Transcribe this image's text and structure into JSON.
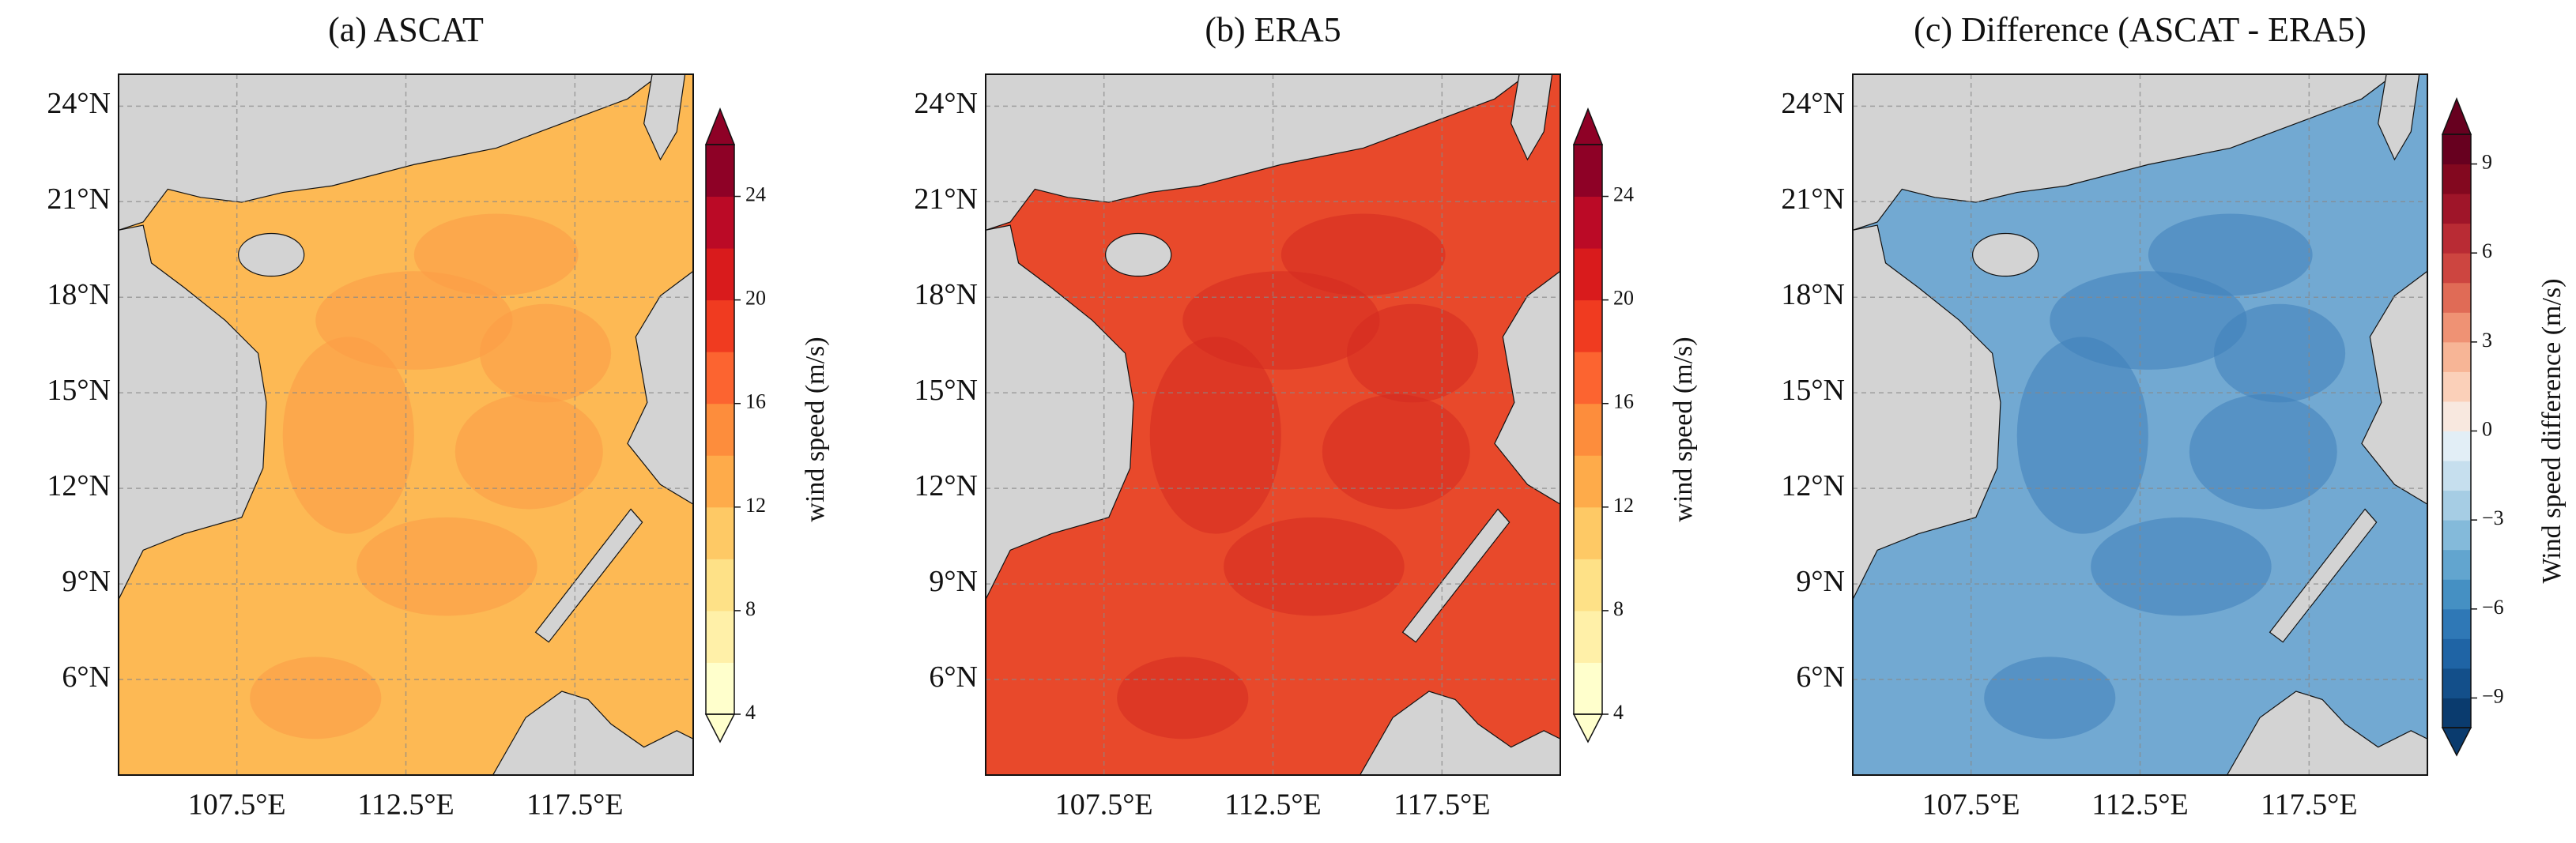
{
  "map": {
    "xlim": [
      104,
      121
    ],
    "ylim": [
      3,
      25
    ],
    "lat_ticks": [
      {
        "value": 6,
        "label": "6°N"
      },
      {
        "value": 9,
        "label": "9°N"
      },
      {
        "value": 12,
        "label": "12°N"
      },
      {
        "value": 15,
        "label": "15°N"
      },
      {
        "value": 18,
        "label": "18°N"
      },
      {
        "value": 21,
        "label": "21°N"
      },
      {
        "value": 24,
        "label": "24°N"
      }
    ],
    "lon_ticks": [
      {
        "value": 107.5,
        "label": "107.5°E"
      },
      {
        "value": 112.5,
        "label": "112.5°E"
      },
      {
        "value": 117.5,
        "label": "117.5°E"
      }
    ],
    "grid": true,
    "land_color": "#d3d3d3",
    "panels": [
      {
        "title": "(a) ASCAT",
        "sea_color": "#fdb954",
        "blotch_color": "#fc9a45",
        "colorbar": {
          "label": "wind speed (m/s)",
          "range": [
            4,
            26
          ],
          "ticks": [
            4,
            8,
            12,
            16,
            20,
            24
          ],
          "colors": [
            "#ffffcc",
            "#fff0a8",
            "#fee187",
            "#fec965",
            "#feab4a",
            "#fd8d3c",
            "#fc6430",
            "#f03b20",
            "#d91b1c",
            "#bb0a26",
            "#8e0126"
          ]
        }
      },
      {
        "title": "(b) ERA5",
        "sea_color": "#e8492b",
        "blotch_color": "#d42a21",
        "colorbar": {
          "label": "wind speed (m/s)",
          "range": [
            4,
            26
          ],
          "ticks": [
            4,
            8,
            12,
            16,
            20,
            24
          ],
          "colors": [
            "#ffffcc",
            "#fff0a8",
            "#fee187",
            "#fec965",
            "#feab4a",
            "#fd8d3c",
            "#fc6430",
            "#f03b20",
            "#d91b1c",
            "#bb0a26",
            "#8e0126"
          ]
        }
      },
      {
        "title": "(c) Difference (ASCAT - ERA5)",
        "sea_color": "#72a9d2",
        "blotch_color": "#3f80ba",
        "colorbar": {
          "label": "Wind speed difference (m/s)",
          "range": [
            -10,
            10
          ],
          "ticks": [
            {
              "value": -9,
              "label": "−9"
            },
            {
              "value": -6,
              "label": "−6"
            },
            {
              "value": -3,
              "label": "−3"
            },
            0,
            3,
            6,
            9
          ],
          "colors": [
            "#0a3b6e",
            "#134f8a",
            "#1f64a5",
            "#2f78b6",
            "#4590c3",
            "#62a5cf",
            "#84bada",
            "#a6cde4",
            "#c6dfee",
            "#e2eef6",
            "#f8e8df",
            "#fbd0b9",
            "#f7b596",
            "#ef9274",
            "#e06b56",
            "#cd4540",
            "#b92b34",
            "#9f1529",
            "#83081f",
            "#67001f"
          ]
        }
      }
    ]
  }
}
